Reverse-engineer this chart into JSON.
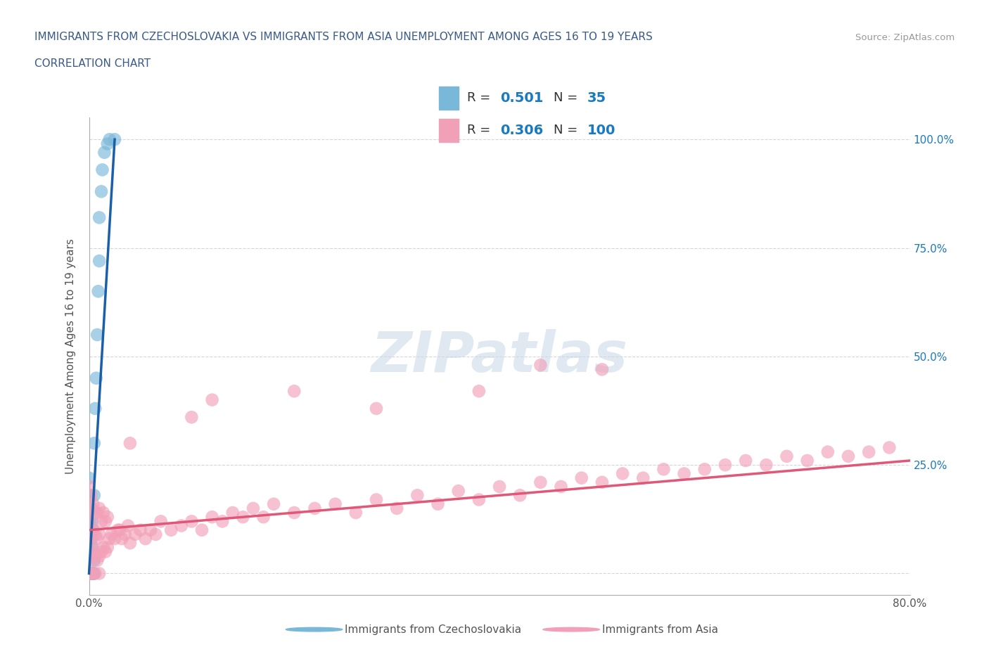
{
  "title_line1": "IMMIGRANTS FROM CZECHOSLOVAKIA VS IMMIGRANTS FROM ASIA UNEMPLOYMENT AMONG AGES 16 TO 19 YEARS",
  "title_line2": "CORRELATION CHART",
  "title_color": "#3a5a8a",
  "source_text": "Source: ZipAtlas.com",
  "ylabel": "Unemployment Among Ages 16 to 19 years",
  "xlim": [
    0.0,
    0.8
  ],
  "ylim": [
    -0.05,
    1.05
  ],
  "grid_color": "#cccccc",
  "watermark": "ZIPatlas",
  "blue_color": "#7ab8d9",
  "pink_color": "#f2a0b8",
  "trend_blue": "#1a5fa8",
  "trend_pink": "#e05878",
  "r_color": "#1a7abf",
  "czecho_x": [
    0.0,
    0.0,
    0.0,
    0.0,
    0.0,
    0.0,
    0.0,
    0.0,
    0.0,
    0.0,
    0.002,
    0.002,
    0.002,
    0.002,
    0.003,
    0.003,
    0.003,
    0.004,
    0.004,
    0.005,
    0.005,
    0.005,
    0.005,
    0.006,
    0.007,
    0.008,
    0.009,
    0.01,
    0.01,
    0.012,
    0.013,
    0.015,
    0.018,
    0.02,
    0.025
  ],
  "czecho_y": [
    0.0,
    0.0,
    0.0,
    0.0,
    0.0,
    0.05,
    0.08,
    0.12,
    0.18,
    0.22,
    0.0,
    0.04,
    0.08,
    0.15,
    0.0,
    0.06,
    0.12,
    0.0,
    0.1,
    0.0,
    0.03,
    0.18,
    0.3,
    0.38,
    0.45,
    0.55,
    0.65,
    0.72,
    0.82,
    0.88,
    0.93,
    0.97,
    0.99,
    1.0,
    1.0
  ],
  "asia_x": [
    0.0,
    0.0,
    0.0,
    0.0,
    0.0,
    0.0,
    0.0,
    0.0,
    0.0,
    0.0,
    0.0,
    0.002,
    0.002,
    0.002,
    0.002,
    0.002,
    0.002,
    0.004,
    0.004,
    0.004,
    0.004,
    0.006,
    0.006,
    0.006,
    0.006,
    0.008,
    0.008,
    0.008,
    0.01,
    0.01,
    0.01,
    0.01,
    0.012,
    0.012,
    0.014,
    0.014,
    0.016,
    0.016,
    0.018,
    0.018,
    0.02,
    0.022,
    0.025,
    0.028,
    0.03,
    0.032,
    0.035,
    0.038,
    0.04,
    0.045,
    0.05,
    0.055,
    0.06,
    0.065,
    0.07,
    0.08,
    0.09,
    0.1,
    0.11,
    0.12,
    0.13,
    0.14,
    0.15,
    0.16,
    0.17,
    0.18,
    0.2,
    0.22,
    0.24,
    0.26,
    0.28,
    0.3,
    0.32,
    0.34,
    0.36,
    0.38,
    0.4,
    0.42,
    0.44,
    0.46,
    0.48,
    0.5,
    0.52,
    0.54,
    0.56,
    0.58,
    0.6,
    0.62,
    0.64,
    0.66,
    0.68,
    0.7,
    0.72,
    0.74,
    0.76,
    0.78
  ],
  "asia_y": [
    0.0,
    0.0,
    0.0,
    0.0,
    0.0,
    0.0,
    0.05,
    0.08,
    0.12,
    0.16,
    0.2,
    0.0,
    0.03,
    0.07,
    0.1,
    0.14,
    0.18,
    0.0,
    0.05,
    0.1,
    0.16,
    0.0,
    0.04,
    0.09,
    0.14,
    0.03,
    0.08,
    0.14,
    0.0,
    0.04,
    0.09,
    0.15,
    0.05,
    0.12,
    0.06,
    0.14,
    0.05,
    0.12,
    0.06,
    0.13,
    0.08,
    0.09,
    0.08,
    0.1,
    0.1,
    0.08,
    0.09,
    0.11,
    0.07,
    0.09,
    0.1,
    0.08,
    0.1,
    0.09,
    0.12,
    0.1,
    0.11,
    0.12,
    0.1,
    0.13,
    0.12,
    0.14,
    0.13,
    0.15,
    0.13,
    0.16,
    0.14,
    0.15,
    0.16,
    0.14,
    0.17,
    0.15,
    0.18,
    0.16,
    0.19,
    0.17,
    0.2,
    0.18,
    0.21,
    0.2,
    0.22,
    0.21,
    0.23,
    0.22,
    0.24,
    0.23,
    0.24,
    0.25,
    0.26,
    0.25,
    0.27,
    0.26,
    0.28,
    0.27,
    0.28,
    0.29
  ],
  "asia_outlier_x": [
    0.04,
    0.1,
    0.12,
    0.2,
    0.28,
    0.38,
    0.44,
    0.5
  ],
  "asia_outlier_y": [
    0.3,
    0.36,
    0.4,
    0.42,
    0.38,
    0.42,
    0.48,
    0.47
  ],
  "czecho_trend_x0": 0.0,
  "czecho_trend_y0": 0.0,
  "czecho_trend_x1": 0.025,
  "czecho_trend_y1": 1.0,
  "asia_trend_x0": 0.0,
  "asia_trend_y0": 0.1,
  "asia_trend_x1": 0.8,
  "asia_trend_y1": 0.26,
  "background_color": "#ffffff"
}
